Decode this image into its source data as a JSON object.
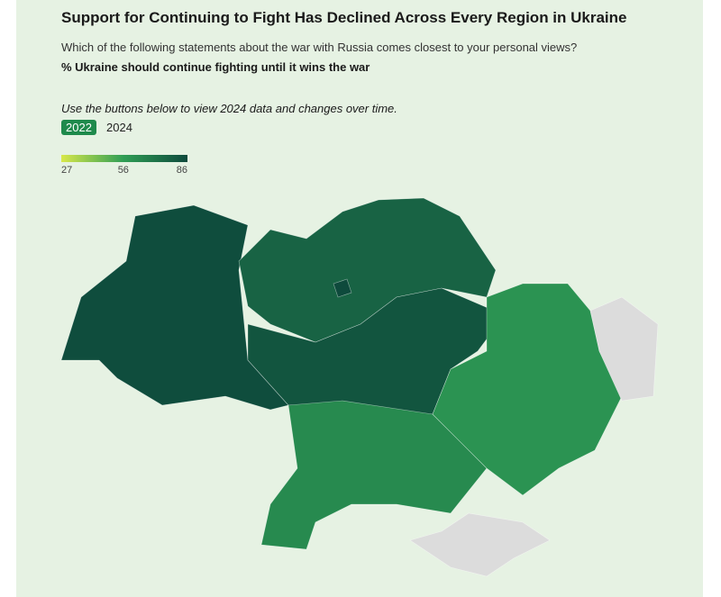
{
  "header": {
    "title": "Support for Continuing to Fight Has Declined Across Every Region in Ukraine",
    "question": "Which of the following statements about the war with Russia comes closest to your personal views?",
    "measure": "% Ukraine should continue fighting until it wins the war",
    "instruction": "Use the buttons below to view 2024 data and changes over time."
  },
  "buttons": [
    "2022",
    "2024"
  ],
  "legend": {
    "ticks": [
      27,
      56,
      86
    ],
    "colors": [
      "#d8e84a",
      "#2f9e55",
      "#0e4a3c"
    ]
  },
  "map": {
    "values": [
      85,
      77,
      82,
      63,
      60,
      86,
      null,
      null
    ]
  }
}
